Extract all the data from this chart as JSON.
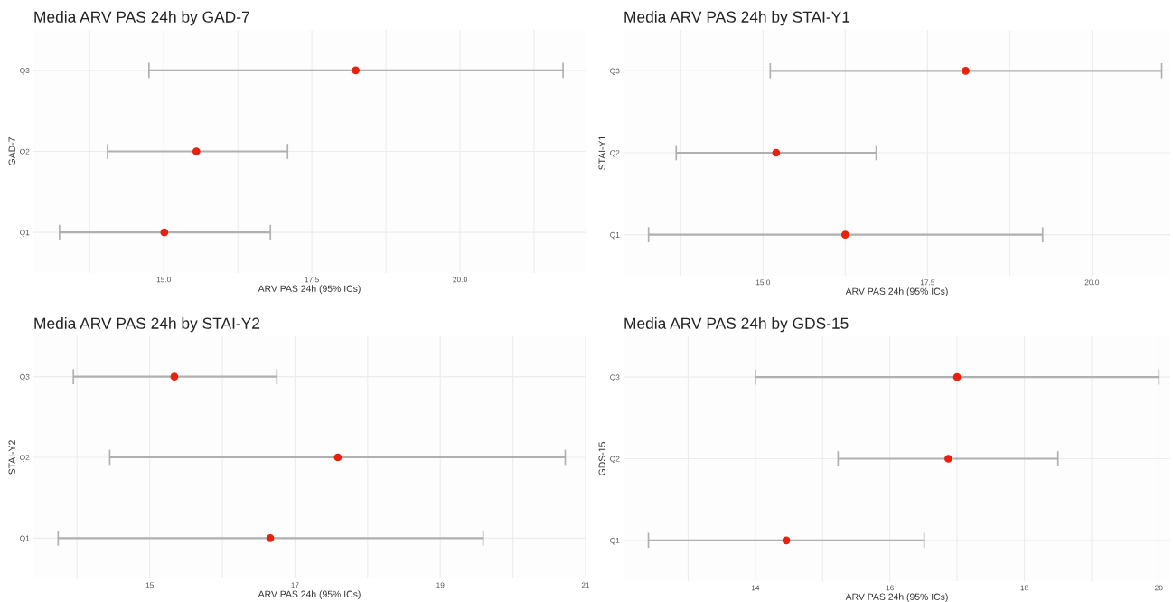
{
  "chart_data": [
    {
      "type": "scatter",
      "orientation": "horizontal",
      "title": "Media ARV PAS 24h by GAD-7",
      "xlabel": "ARV PAS 24h (95% ICs)",
      "ylabel": "GAD-7",
      "categories": [
        "Q3",
        "Q2",
        "Q1"
      ],
      "values": [
        18.24,
        15.55,
        15.01
      ],
      "errors": [
        [
          14.75,
          21.74
        ],
        [
          14.05,
          17.09
        ],
        [
          13.24,
          16.8
        ]
      ],
      "color": "#e8210f",
      "marker": "circle",
      "grid": true,
      "xlim": [
        12.8,
        22.12
      ],
      "xticks": [
        {
          "value": 13.75,
          "label": null
        },
        {
          "value": 15,
          "label": "15.0"
        },
        {
          "value": 16.25,
          "label": null
        },
        {
          "value": 17.5,
          "label": "17.5"
        },
        {
          "value": 18.75,
          "label": null
        },
        {
          "value": 20,
          "label": "20.0"
        },
        {
          "value": 21.25,
          "label": null
        }
      ]
    },
    {
      "type": "scatter",
      "orientation": "horizontal",
      "title": "Media ARV PAS 24h by STAI-Y1",
      "xlabel": "ARV PAS 24h (95% ICs)",
      "ylabel": "STAI-Y1",
      "categories": [
        "Q3",
        "Q2",
        "Q1"
      ],
      "values": [
        18.08,
        15.2,
        16.25
      ],
      "errors": [
        [
          15.11,
          21.06
        ],
        [
          13.68,
          16.72
        ],
        [
          13.26,
          19.25
        ]
      ],
      "color": "#e8210f",
      "marker": "circle",
      "grid": true,
      "xlim": [
        12.88,
        21.19
      ],
      "xticks": [
        {
          "value": 13.75,
          "label": null
        },
        {
          "value": 15,
          "label": "15.0"
        },
        {
          "value": 16.25,
          "label": null
        },
        {
          "value": 17.5,
          "label": "17.5"
        },
        {
          "value": 18.75,
          "label": null
        },
        {
          "value": 20,
          "label": "20.0"
        }
      ]
    },
    {
      "type": "scatter",
      "orientation": "horizontal",
      "title": "Media ARV PAS 24h by STAI-Y2",
      "xlabel": "ARV PAS 24h (95% ICs)",
      "ylabel": "STAI-Y2",
      "categories": [
        "Q3",
        "Q2",
        "Q1"
      ],
      "values": [
        15.34,
        17.59,
        16.66
      ],
      "errors": [
        [
          13.95,
          16.75
        ],
        [
          14.45,
          20.72
        ],
        [
          13.74,
          19.59
        ]
      ],
      "color": "#e8210f",
      "marker": "circle",
      "grid": true,
      "xlim": [
        13.4,
        21.0
      ],
      "xticks": [
        {
          "value": 14,
          "label": null
        },
        15,
        {
          "value": 16,
          "label": null
        },
        17,
        {
          "value": 18,
          "label": null
        },
        19,
        {
          "value": 20,
          "label": null
        },
        21
      ]
    },
    {
      "type": "scatter",
      "orientation": "horizontal",
      "title": "Media ARV PAS 24h by GDS-15",
      "xlabel": "ARV PAS 24h (95% ICs)",
      "ylabel": "GDS-15",
      "categories": [
        "Q3",
        "Q2",
        "Q1"
      ],
      "values": [
        17.0,
        16.87,
        14.46
      ],
      "errors": [
        [
          14.0,
          20.0
        ],
        [
          15.23,
          18.5
        ],
        [
          12.41,
          16.51
        ]
      ],
      "color": "#e8210f",
      "marker": "circle",
      "grid": true,
      "xlim": [
        12.04,
        20.17
      ],
      "xticks": [
        {
          "value": 13,
          "label": null
        },
        14,
        {
          "value": 15,
          "label": null
        },
        16,
        {
          "value": 17,
          "label": null
        },
        18,
        {
          "value": 19,
          "label": null
        },
        20
      ]
    }
  ]
}
